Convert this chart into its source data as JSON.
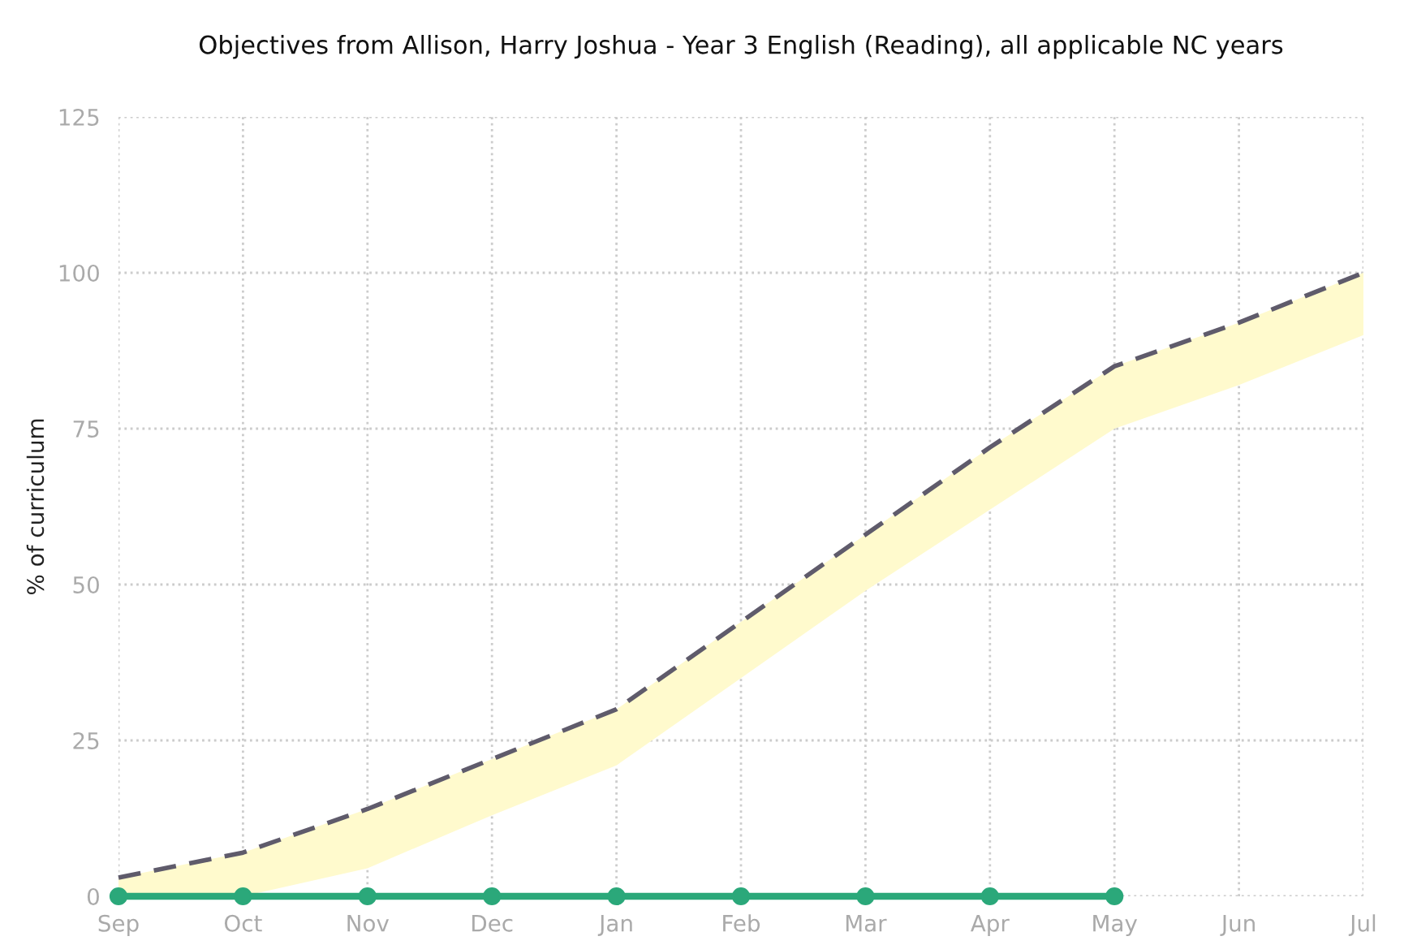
{
  "chart_data": {
    "type": "line",
    "title": "Objectives from Allison, Harry Joshua - Year 3 English (Reading), all applicable NC years",
    "ylabel": "% of curriculum",
    "categories": [
      "Sep",
      "Oct",
      "Nov",
      "Dec",
      "Jan",
      "Feb",
      "Mar",
      "Apr",
      "May",
      "Jun",
      "Jul"
    ],
    "series": [
      {
        "color": "#5f5b6b",
        "line_style": "dashed",
        "marker": "none",
        "values": [
          3,
          7,
          14,
          22,
          30,
          44,
          58,
          72,
          85,
          92,
          100
        ],
        "lower": [
          0,
          0,
          4.5,
          13,
          21,
          35,
          49,
          62,
          75,
          82,
          90
        ],
        "upper": [
          3,
          7,
          14,
          22,
          30,
          44,
          58,
          72,
          85,
          92,
          100
        ]
      },
      {
        "color": "#2ba87a",
        "line_style": "solid",
        "marker": "circle",
        "values": [
          0,
          0,
          0,
          0,
          0,
          0,
          0,
          0,
          0,
          null,
          null
        ]
      }
    ],
    "ylim": [
      0,
      125
    ],
    "yticks": [
      0,
      25,
      50,
      75,
      100,
      125
    ],
    "grid": true,
    "legend": false
  }
}
